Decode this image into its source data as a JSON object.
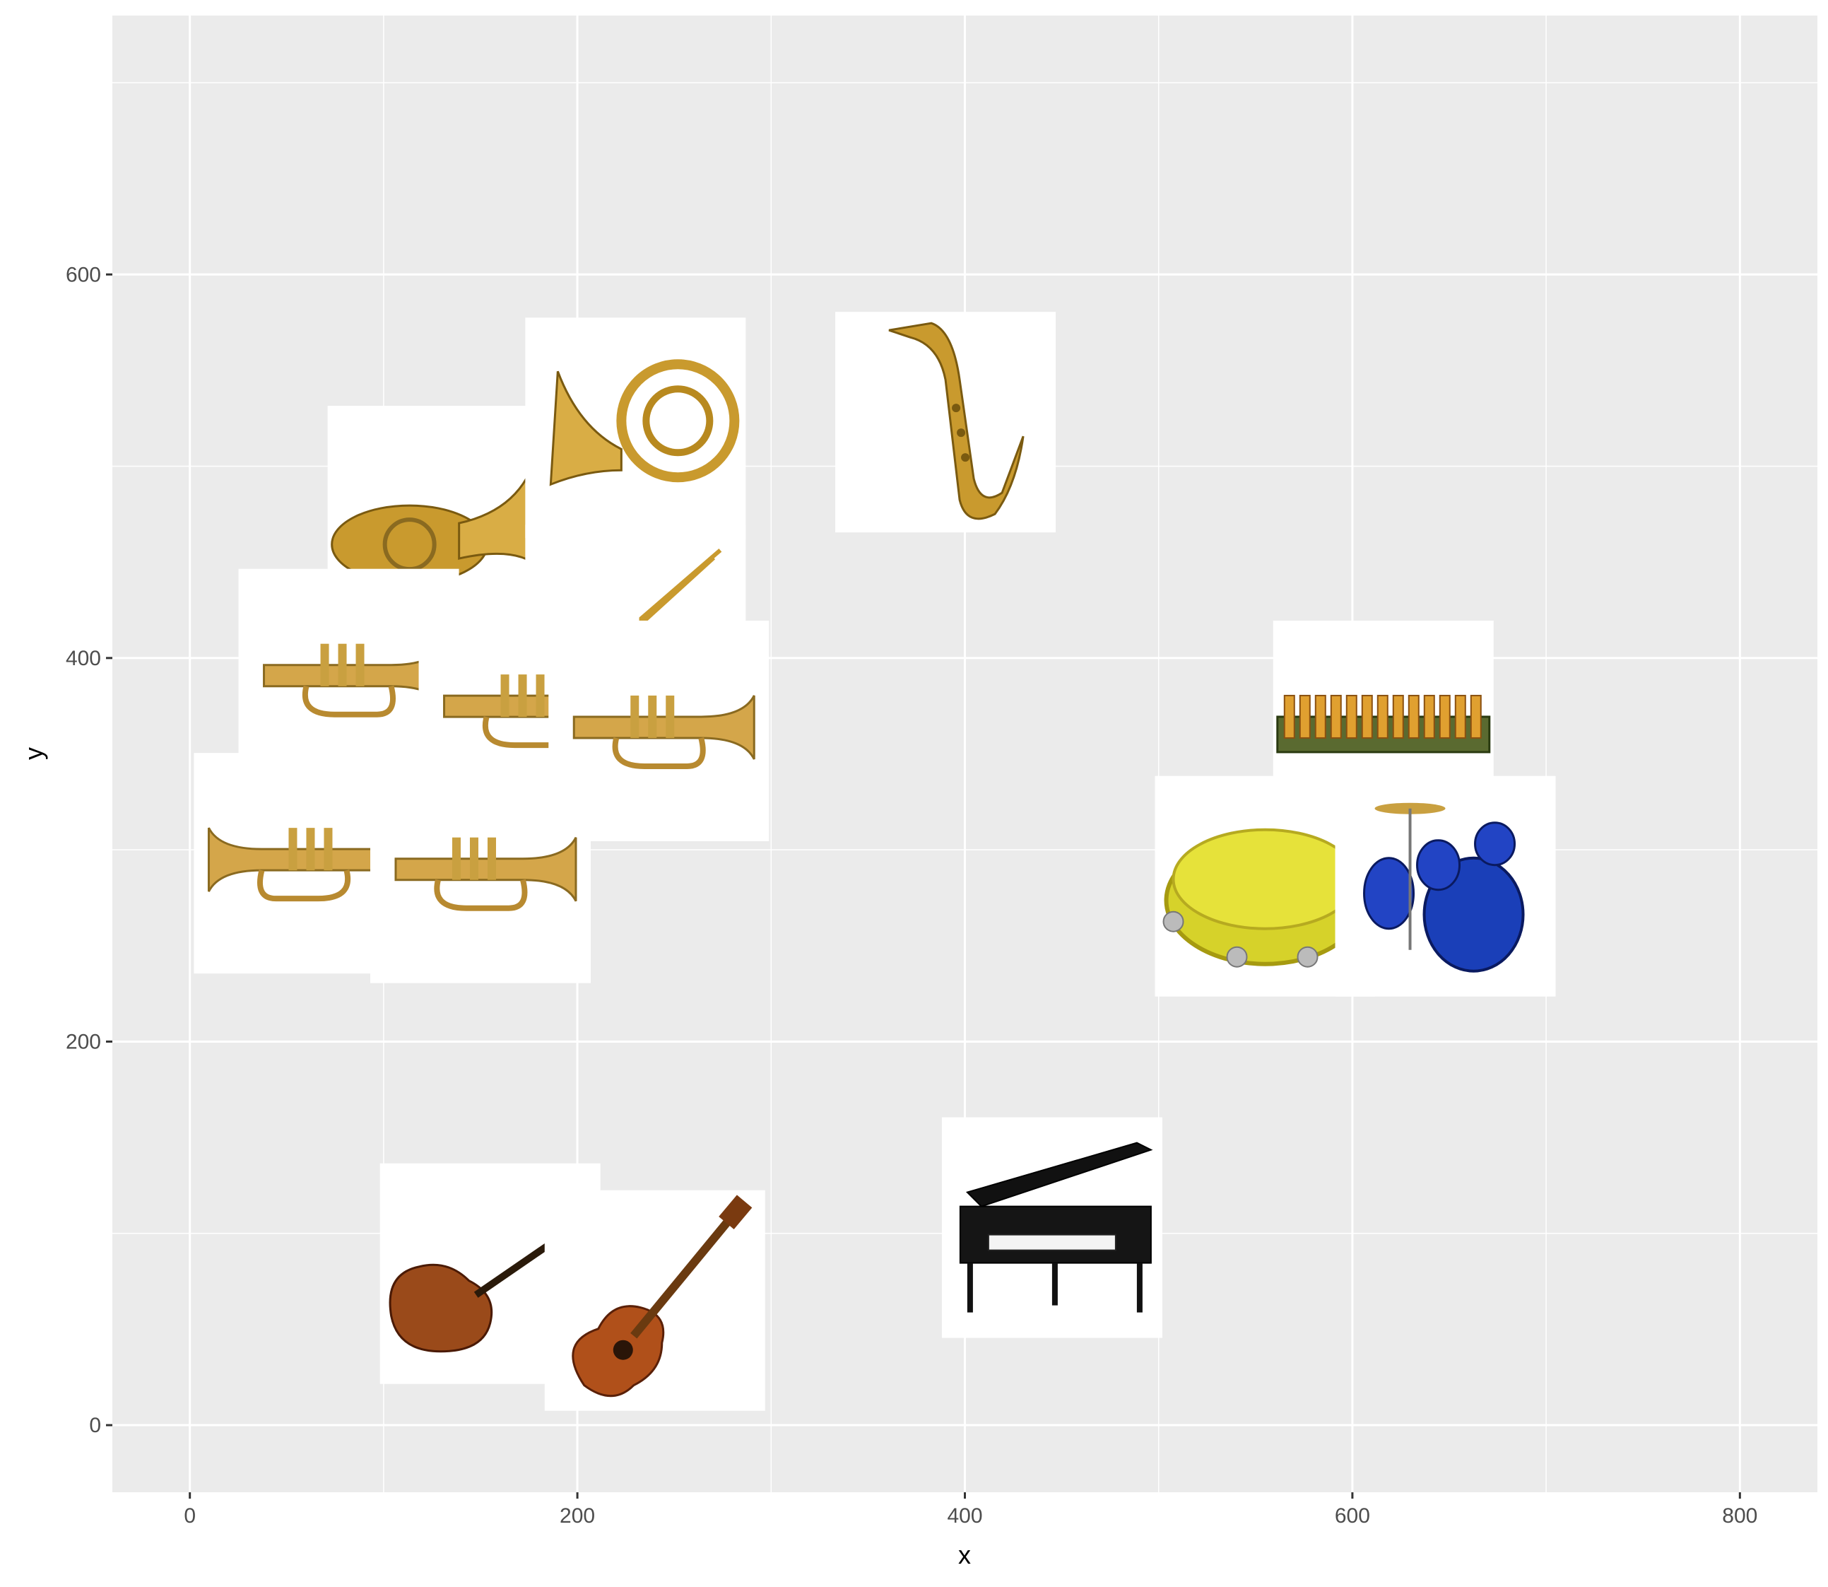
{
  "chart_data": {
    "type": "scatter",
    "title": "",
    "xlabel": "x",
    "ylabel": "y",
    "xlim": [
      -40,
      840
    ],
    "ylim": [
      -35,
      735
    ],
    "x_ticks": [
      0,
      200,
      400,
      600,
      800
    ],
    "y_ticks": [
      0,
      200,
      400,
      600
    ],
    "grid": true,
    "legend": "none",
    "panel_background": "#ebebeb",
    "grid_color": "#ffffff",
    "marker_style": "instrument photograph on white tile",
    "points": [
      {
        "name": "tuba",
        "x": 128,
        "y": 474
      },
      {
        "name": "french-horn",
        "x": 230,
        "y": 520
      },
      {
        "name": "saxophone",
        "x": 390,
        "y": 523
      },
      {
        "name": "trombone",
        "x": 230,
        "y": 412
      },
      {
        "name": "trumpet",
        "x": 82,
        "y": 389
      },
      {
        "name": "cornet",
        "x": 175,
        "y": 373
      },
      {
        "name": "trumpet",
        "x": 242,
        "y": 362
      },
      {
        "name": "trumpet",
        "x": 59,
        "y": 293
      },
      {
        "name": "trumpet",
        "x": 150,
        "y": 288
      },
      {
        "name": "xylophone",
        "x": 616,
        "y": 362
      },
      {
        "name": "tambourine",
        "x": 555,
        "y": 281
      },
      {
        "name": "drum-kit",
        "x": 648,
        "y": 281
      },
      {
        "name": "violin",
        "x": 155,
        "y": 79
      },
      {
        "name": "acoustic-guitar",
        "x": 240,
        "y": 65
      },
      {
        "name": "grand-piano",
        "x": 445,
        "y": 103
      }
    ]
  }
}
